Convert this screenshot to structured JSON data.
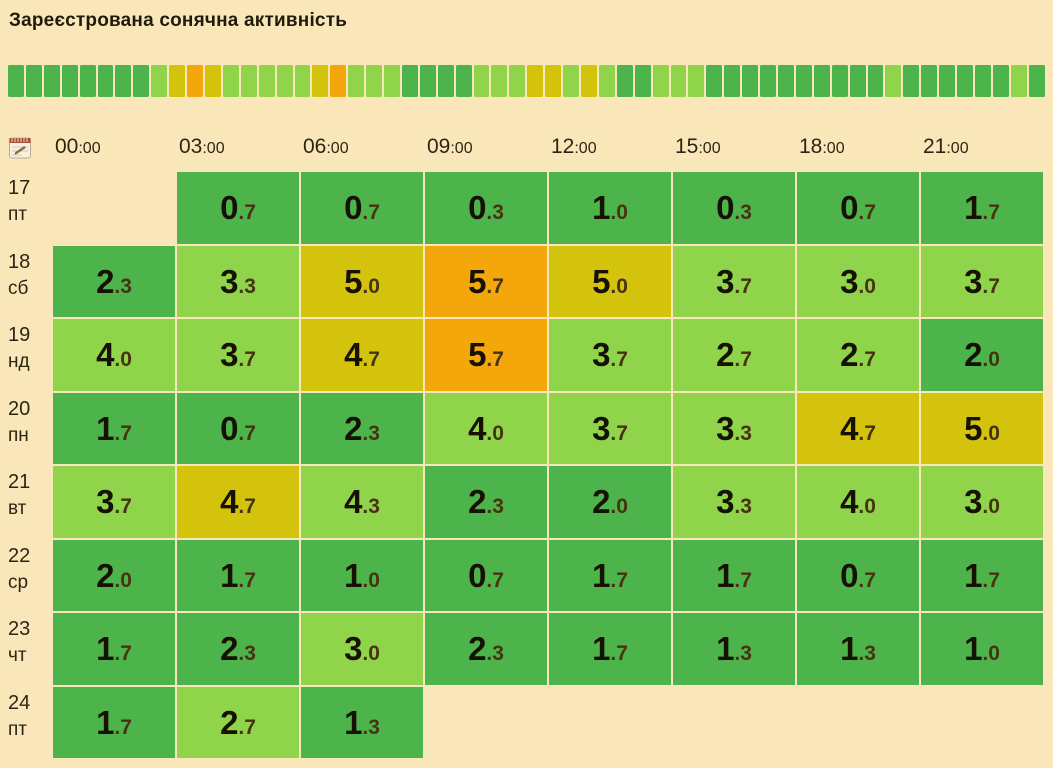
{
  "page": {
    "background_color": "#f9e7ba"
  },
  "icons": {
    "header_row_icon": "notepad-calendar-icon"
  },
  "chart_data": {
    "type": "heatmap",
    "title": "Зареєстрована сонячна активність",
    "legend_position": "none",
    "grid": "gapped-cells",
    "columns": [
      "00:00",
      "03:00",
      "06:00",
      "09:00",
      "12:00",
      "15:00",
      "18:00",
      "21:00"
    ],
    "rows": [
      {
        "date": "17",
        "weekday": "пт",
        "values": [
          null,
          "0.7",
          "0.7",
          "0.3",
          "1.0",
          "0.3",
          "0.7",
          "1.7"
        ]
      },
      {
        "date": "18",
        "weekday": "сб",
        "values": [
          "2.3",
          "3.3",
          "5.0",
          "5.7",
          "5.0",
          "3.7",
          "3.0",
          "3.7"
        ]
      },
      {
        "date": "19",
        "weekday": "нд",
        "values": [
          "4.0",
          "3.7",
          "4.7",
          "5.7",
          "3.7",
          "2.7",
          "2.7",
          "2.0"
        ]
      },
      {
        "date": "20",
        "weekday": "пн",
        "values": [
          "1.7",
          "0.7",
          "2.3",
          "4.0",
          "3.7",
          "3.3",
          "4.7",
          "5.0"
        ]
      },
      {
        "date": "21",
        "weekday": "вт",
        "values": [
          "3.7",
          "4.7",
          "4.3",
          "2.3",
          "2.0",
          "3.3",
          "4.0",
          "3.0"
        ]
      },
      {
        "date": "22",
        "weekday": "ср",
        "values": [
          "2.0",
          "1.7",
          "1.0",
          "0.7",
          "1.7",
          "1.7",
          "0.7",
          "1.7"
        ]
      },
      {
        "date": "23",
        "weekday": "чт",
        "values": [
          "1.7",
          "2.3",
          "3.0",
          "2.3",
          "1.7",
          "1.3",
          "1.3",
          "1.0"
        ]
      },
      {
        "date": "24",
        "weekday": "пт",
        "values": [
          "1.7",
          "2.7",
          "1.3",
          null,
          null,
          null,
          null,
          null
        ]
      }
    ],
    "summary_strip": "one square per table value, row by row, same color scale",
    "color_scale": {
      "green": "#4db44b",
      "light_green": "#8fd44b",
      "yellow": "#d4c30c",
      "orange": "#f3a70a",
      "thresholds": [
        {
          "min": 0.0,
          "key": "green"
        },
        {
          "min": 2.7,
          "key": "light_green"
        },
        {
          "min": 4.7,
          "key": "yellow"
        },
        {
          "min": 5.4,
          "key": "orange"
        }
      ]
    }
  }
}
